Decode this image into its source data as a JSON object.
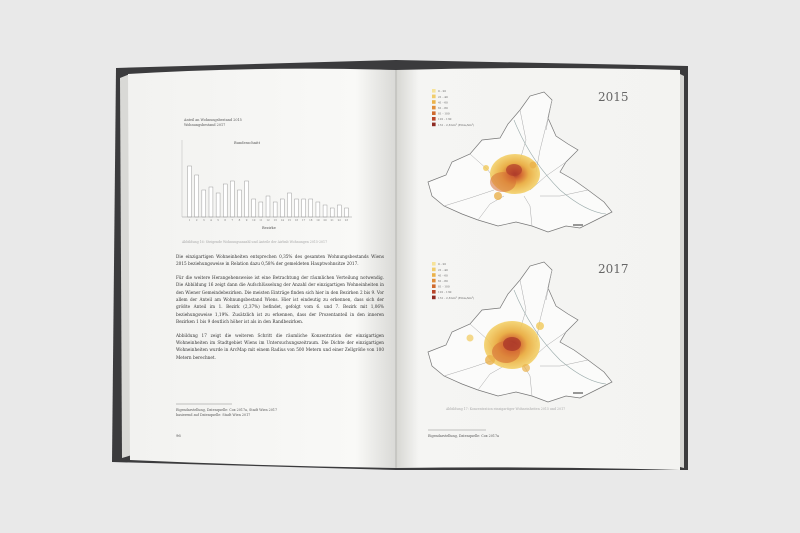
{
  "left_page": {
    "chart_title_line1": "Anteil an Wohnungsbestand 2015",
    "chart_title_line2": "Wohnungsbestand 2017",
    "chart_legend": "Bundesschnitt",
    "chart_xlabel": "Bezirke",
    "figure_caption": "Abbildung 16: Steigende Wohnungsanzahl und Anteile der Airbnb Wohnungen 2015-2017",
    "paragraph1": "Die einzigartigen Wohneinheiten entsprechen 0,35% des gesamten Wohnungsbestands Wiens 2015 beziehungsweise in Relation dazu 0,58% der gemeldeten Hauptwohnsitze 2017.",
    "paragraph2": "Für die weitere Herangehensweise ist eine Betrachtung der räumlichen Verteilung notwendig. Die Abbildung 16 zeigt dann die Aufschlüsselung der Anzahl der einzigartigen Wohneinheiten in den Wiener Gemeindebezirken. Die meisten Einträge finden sich hier in den Bezirken 2 bis 9. Vor allem der Anteil am Wohnungsbestand Wiens. Hier ist eindeutig zu erkennen, dass sich der größte Anteil im 1. Bezirk (2,37%) befindet, gefolgt vom 6. und 7. Bezirk mit 1,06% beziehungsweise 1,19%. Zusätzlich ist zu erkennen, dass der Prozentanteil in den inneren Bezirken 1 bis 9 deutlich höher ist als in den Randbezirken.",
    "paragraph3": "Abbildung 17 zeigt die weiteren Schritt die räumliche Konzentration der einzigartigen Wohneinheiten im Stadtgebiet Wiens im Untersuchungszeitraum. Die Dichte der einzigartigen Wohneinheiten wurde in ArcMap mit einem Radius von 500 Metern und einer Zellgröße von 100 Metern berechnet.",
    "footnote1": "Eigendarstellung, Datenquelle: Cox 2017a, Stadt Wien 2017",
    "footnote2": "basierend auf Datenquelle: Stadt Wien 2017",
    "page_number": "96"
  },
  "right_page": {
    "map_top_year": "2015",
    "map_bottom_year": "2017",
    "figure_caption": "Abbildung 17: Konzentration einzigartiger Wohneinheiten 2015 und 2017",
    "footnote": "Eigendarstellung, Datenquelle: Cox 2017a",
    "legend_items": [
      "0 - 20",
      "21 - 40",
      "41 - 60",
      "61 - 80",
      "81 - 100",
      "101 - 130",
      "131 - 2,8 km² (Einw./km²)"
    ],
    "legend_colors": [
      "#f6e39a",
      "#f1cd6c",
      "#ebb24a",
      "#e08e3a",
      "#cf6a2e",
      "#b8452a",
      "#8e2a22"
    ]
  },
  "colors": {
    "book_cover": "#3a3a3c",
    "paper": "#f7f7f5",
    "heat_low": "#f0c34a",
    "heat_high": "#b8452a"
  },
  "chart_data": {
    "type": "bar",
    "categories": [
      "1",
      "2",
      "3",
      "4",
      "5",
      "6",
      "7",
      "8",
      "9",
      "10",
      "11",
      "12",
      "13",
      "14",
      "15",
      "16",
      "17",
      "18",
      "19",
      "20",
      "21",
      "22",
      "23"
    ],
    "values": [
      17,
      14,
      9,
      10,
      8,
      11,
      12,
      9,
      12,
      6,
      5,
      7,
      5,
      6,
      8,
      6,
      6,
      6,
      5,
      4,
      3,
      4,
      3
    ],
    "ylim": [
      0,
      25
    ]
  }
}
